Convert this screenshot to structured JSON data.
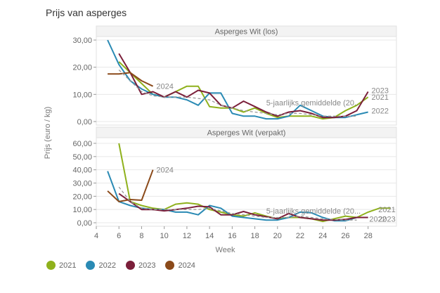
{
  "title": "Prijs van asperges",
  "legend": [
    {
      "label": "2021",
      "color": "#8fb11c"
    },
    {
      "label": "2022",
      "color": "#2a8ab4"
    },
    {
      "label": "2023",
      "color": "#7b1f3a"
    },
    {
      "label": "2024",
      "color": "#8b4a1a"
    }
  ],
  "chart_data": [
    {
      "type": "line",
      "title": "Asperges Wit (los)",
      "xlabel": "Week",
      "ylabel": "Prijs (euro / kg)",
      "xlim": [
        4,
        30
      ],
      "ylim": [
        0,
        30
      ],
      "yticks": [
        "0,00",
        "10,00",
        "20,00",
        "30,00"
      ],
      "ytick_values": [
        0,
        10,
        20,
        30
      ],
      "grid": true,
      "series": [
        {
          "name": "2021",
          "color": "#8fb11c",
          "x": [
            6,
            7,
            8,
            9,
            10,
            11,
            12,
            13,
            14,
            15,
            16,
            17,
            18,
            19,
            20,
            21,
            22,
            23,
            24,
            25,
            26,
            27,
            28
          ],
          "y": [
            22,
            18,
            14,
            10,
            9,
            11,
            13,
            13,
            5.5,
            5,
            5,
            3.5,
            5,
            3,
            1.5,
            2,
            2,
            2,
            1,
            1.5,
            4,
            6,
            9
          ]
        },
        {
          "name": "2022",
          "color": "#2a8ab4",
          "x": [
            5,
            6,
            7,
            8,
            9,
            10,
            11,
            12,
            13,
            14,
            15,
            16,
            17,
            18,
            19,
            20,
            21,
            22,
            23,
            24,
            25,
            26,
            27,
            28
          ],
          "y": [
            30,
            21,
            15,
            12,
            10,
            9,
            9,
            8,
            6,
            10.5,
            10.5,
            3,
            2,
            2,
            1,
            1,
            2,
            6,
            4,
            2,
            1.5,
            1.5,
            2.5,
            3.5
          ]
        },
        {
          "name": "2023",
          "color": "#7b1f3a",
          "x": [
            6,
            7,
            8,
            9,
            10,
            11,
            12,
            13,
            14,
            15,
            16,
            17,
            18,
            19,
            20,
            21,
            22,
            23,
            24,
            25,
            26,
            27,
            28
          ],
          "y": [
            25,
            18,
            10,
            11,
            9,
            11,
            9,
            11.5,
            10.5,
            6,
            5,
            7.5,
            5.5,
            3.5,
            2,
            3.5,
            4,
            3,
            1.5,
            1.5,
            2,
            4,
            11
          ]
        },
        {
          "name": "2024",
          "color": "#8b4a1a",
          "x": [
            5,
            6,
            7,
            8,
            9
          ],
          "y": [
            17.5,
            17.5,
            18,
            15,
            13
          ]
        },
        {
          "name": "5-jaarlijks gemiddelde (20...",
          "color": "#999999",
          "dashed": true,
          "x": [
            6,
            7,
            8,
            9,
            10,
            11,
            12,
            13,
            14,
            15,
            16,
            17,
            18,
            19,
            20,
            21,
            22,
            23,
            24,
            25,
            26,
            27
          ],
          "y": [
            19,
            15,
            11,
            9.5,
            9,
            9,
            9,
            8.5,
            8,
            6,
            5,
            4,
            3.5,
            3,
            2.5,
            3,
            3,
            2.5,
            2,
            2,
            2,
            2
          ]
        }
      ],
      "annotations": [
        {
          "text": "2024",
          "x": 9.3,
          "y": 13
        },
        {
          "text": "5-jaarlijks gemiddelde (20...",
          "x": 19,
          "y": 7
        },
        {
          "text": "2023",
          "x": 28.3,
          "y": 11.5
        },
        {
          "text": "2021",
          "x": 28.3,
          "y": 9
        },
        {
          "text": "2022",
          "x": 28.3,
          "y": 4
        }
      ]
    },
    {
      "type": "line",
      "title": "Asperges Wit (verpakt)",
      "xlabel": "Week",
      "ylabel": "Prijs (euro / kg)",
      "xlim": [
        4,
        30
      ],
      "ylim": [
        0,
        60
      ],
      "xticks": [
        4,
        6,
        8,
        10,
        12,
        14,
        16,
        18,
        20,
        22,
        24,
        26,
        28
      ],
      "yticks": [
        "0,00",
        "10,00",
        "20,00",
        "30,00",
        "40,00",
        "50,00",
        "60,00"
      ],
      "ytick_values": [
        0,
        10,
        20,
        30,
        40,
        50,
        60
      ],
      "grid": true,
      "series": [
        {
          "name": "2021",
          "color": "#8fb11c",
          "x": [
            6,
            7,
            8,
            9,
            10,
            11,
            12,
            13,
            14,
            15,
            16,
            17,
            18,
            19,
            20,
            21,
            22,
            23,
            24,
            25,
            26,
            27,
            28,
            29,
            30
          ],
          "y": [
            60,
            16,
            13,
            11,
            10,
            14,
            15,
            14,
            10,
            8,
            6,
            5,
            7.5,
            5,
            3,
            4,
            4,
            3,
            1,
            3,
            5,
            4,
            8,
            11,
            11
          ]
        },
        {
          "name": "2022",
          "color": "#2a8ab4",
          "x": [
            5,
            6,
            7,
            8,
            9,
            10,
            11,
            12,
            13,
            14,
            15,
            16,
            17,
            18,
            19,
            20,
            21,
            22,
            23,
            24,
            25,
            26,
            27
          ],
          "y": [
            39,
            16,
            13,
            11,
            10,
            10,
            8,
            8,
            6,
            13,
            11,
            5,
            4,
            3,
            2,
            2,
            4,
            8,
            7.5,
            4,
            1.5,
            1.5,
            4
          ]
        },
        {
          "name": "2023",
          "color": "#7b1f3a",
          "x": [
            6,
            7,
            8,
            9,
            10,
            11,
            12,
            13,
            14,
            15,
            16,
            17,
            18,
            19,
            20,
            21,
            22,
            23,
            24,
            25,
            26,
            27,
            28
          ],
          "y": [
            22,
            16,
            10,
            10,
            9,
            10,
            11,
            12.5,
            12,
            6,
            6,
            8.5,
            6,
            4.5,
            3,
            7,
            4,
            3,
            2,
            2,
            2.5,
            4,
            4
          ]
        },
        {
          "name": "2024",
          "color": "#8b4a1a",
          "x": [
            5,
            6,
            7,
            8,
            9
          ],
          "y": [
            24,
            16,
            17.5,
            17,
            40
          ]
        },
        {
          "name": "5-jaarlijks gemiddelde (20...",
          "color": "#999999",
          "dashed": true,
          "x": [
            6,
            7,
            8,
            9,
            10,
            11,
            12,
            13,
            14,
            15,
            16,
            17,
            18,
            19,
            20,
            21,
            22,
            23,
            24,
            25,
            26,
            27
          ],
          "y": [
            27,
            16,
            11,
            10,
            10,
            10,
            10,
            10,
            11,
            9,
            7,
            6,
            5,
            4,
            4,
            4,
            5,
            4,
            3,
            2.5,
            2,
            2
          ]
        }
      ],
      "annotations": [
        {
          "text": "2024",
          "x": 9.3,
          "y": 40
        },
        {
          "text": "5-jaarlijks gemiddelde (20...",
          "x": 19,
          "y": 9
        },
        {
          "text": "2021",
          "x": 28.9,
          "y": 10
        },
        {
          "text": "2022",
          "x": 28.1,
          "y": 3
        },
        {
          "text": "2023",
          "x": 28.9,
          "y": 3
        }
      ]
    }
  ]
}
